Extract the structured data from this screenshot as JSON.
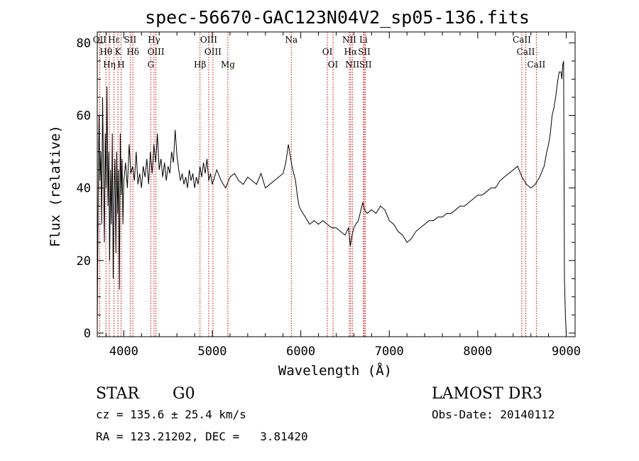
{
  "chart_data": {
    "type": "line",
    "title": "spec-56670-GAC123N04V2_sp05-136.fits",
    "xlabel": "Wavelength (Å)",
    "ylabel": "Flux (relative)",
    "xlim": [
      3700,
      9100
    ],
    "ylim": [
      -1,
      83
    ],
    "xticks": [
      4000,
      5000,
      6000,
      7000,
      8000,
      9000
    ],
    "yticks": [
      0,
      20,
      40,
      60,
      80
    ],
    "grid": false,
    "line_color": "#000000",
    "marker_color": "#cc0000",
    "series": [
      {
        "x": [
          3700,
          3710,
          3720,
          3730,
          3740,
          3750,
          3760,
          3770,
          3780,
          3790,
          3800,
          3810,
          3820,
          3830,
          3840,
          3850,
          3860,
          3870,
          3880,
          3890,
          3900,
          3910,
          3920,
          3930,
          3940,
          3950,
          3960,
          3970,
          3980,
          3990,
          4000,
          4020,
          4040,
          4060,
          4080,
          4100,
          4120,
          4140,
          4160,
          4180,
          4200,
          4220,
          4240,
          4260,
          4280,
          4300,
          4320,
          4340,
          4360,
          4380,
          4400,
          4420,
          4440,
          4460,
          4480,
          4500,
          4520,
          4540,
          4560,
          4580,
          4600,
          4620,
          4640,
          4660,
          4680,
          4700,
          4720,
          4740,
          4760,
          4780,
          4800,
          4820,
          4840,
          4860,
          4880,
          4900,
          4920,
          4940,
          4960,
          4980,
          5000,
          5050,
          5100,
          5150,
          5200,
          5250,
          5300,
          5350,
          5400,
          5450,
          5500,
          5550,
          5600,
          5650,
          5700,
          5750,
          5800,
          5830,
          5860,
          5880,
          5900,
          5920,
          5940,
          5960,
          5980,
          6000,
          6050,
          6100,
          6150,
          6200,
          6250,
          6300,
          6350,
          6400,
          6450,
          6500,
          6520,
          6540,
          6560,
          6580,
          6600,
          6620,
          6650,
          6700,
          6720,
          6750,
          6800,
          6850,
          6900,
          6950,
          7000,
          7050,
          7100,
          7150,
          7200,
          7250,
          7300,
          7350,
          7400,
          7450,
          7500,
          7550,
          7600,
          7650,
          7700,
          7750,
          7800,
          7850,
          7900,
          7950,
          8000,
          8050,
          8100,
          8150,
          8200,
          8250,
          8300,
          8350,
          8400,
          8450,
          8500,
          8550,
          8600,
          8650,
          8700,
          8750,
          8780,
          8800,
          8820,
          8840,
          8860,
          8880,
          8900,
          8920,
          8940,
          8950,
          8960,
          8970,
          8980,
          8990,
          9000
        ],
        "y": [
          2,
          35,
          60,
          42,
          50,
          30,
          65,
          45,
          25,
          55,
          40,
          68,
          35,
          50,
          20,
          45,
          30,
          55,
          15,
          40,
          48,
          22,
          50,
          33,
          45,
          12,
          55,
          38,
          48,
          30,
          42,
          47,
          40,
          52,
          44,
          46,
          42,
          50,
          41,
          44,
          40,
          46,
          43,
          48,
          41,
          50,
          44,
          52,
          47,
          55,
          45,
          48,
          43,
          47,
          42,
          46,
          44,
          50,
          47,
          56,
          49,
          45,
          42,
          44,
          41,
          43,
          40,
          45,
          42,
          44,
          40,
          43,
          41,
          46,
          43,
          47,
          44,
          48,
          42,
          44,
          41,
          45,
          42,
          40,
          43,
          44,
          42,
          41,
          43,
          42,
          41,
          44,
          40,
          41,
          42,
          43,
          44,
          47,
          52,
          49,
          46,
          44,
          42,
          38,
          35,
          34,
          32,
          30,
          31,
          30,
          31,
          30,
          29,
          29,
          28,
          27,
          28,
          29,
          24,
          27,
          29,
          30,
          31,
          36,
          34,
          33,
          34,
          33,
          35,
          34,
          31,
          30,
          28,
          27,
          25,
          26,
          28,
          29,
          30,
          31,
          31,
          32,
          32,
          33,
          33,
          34,
          35,
          35,
          36,
          37,
          38,
          38,
          39,
          40,
          40,
          42,
          43,
          44,
          45,
          46,
          43,
          41,
          40,
          41,
          43,
          46,
          50,
          52,
          55,
          60,
          62,
          65,
          69,
          72,
          72,
          70,
          74,
          75,
          15,
          5,
          0
        ]
      }
    ],
    "lines": [
      {
        "label": "OII",
        "x": 3727
      },
      {
        "label": "Hθ",
        "x": 3798
      },
      {
        "label": "Hη",
        "x": 3836
      },
      {
        "label": "Hε",
        "x": 3889
      },
      {
        "label": "K",
        "x": 3934
      },
      {
        "label": "H",
        "x": 3969
      },
      {
        "label": "SII",
        "x": 4072
      },
      {
        "label": "Hδ",
        "x": 4102
      },
      {
        "label": "G",
        "x": 4305
      },
      {
        "label": "Hγ",
        "x": 4341
      },
      {
        "label": "OIII",
        "x": 4363
      },
      {
        "label": "Hβ",
        "x": 4861
      },
      {
        "label": "OIII",
        "x": 4959
      },
      {
        "label": "OIII",
        "x": 5007
      },
      {
        "label": "Mg",
        "x": 5176
      },
      {
        "label": "Na",
        "x": 5893
      },
      {
        "label": "OI",
        "x": 6300
      },
      {
        "label": "OI",
        "x": 6364
      },
      {
        "label": "NII",
        "x": 6548
      },
      {
        "label": "Hα",
        "x": 6563
      },
      {
        "label": "NII",
        "x": 6583
      },
      {
        "label": "Li",
        "x": 6708
      },
      {
        "label": "SII",
        "x": 6717
      },
      {
        "label": "SII",
        "x": 6731
      },
      {
        "label": "CaII",
        "x": 8498
      },
      {
        "label": "CaII",
        "x": 8542
      },
      {
        "label": "CaII",
        "x": 8662
      }
    ]
  },
  "footer": {
    "object_class": "STAR",
    "subclass": "G0",
    "survey": "LAMOST DR3",
    "cz": "cz = 135.6 ± 25.4 km/s",
    "obs_date": "Obs-Date: 20140112",
    "coords": "RA = 123.21202, DEC =   3.81420"
  }
}
